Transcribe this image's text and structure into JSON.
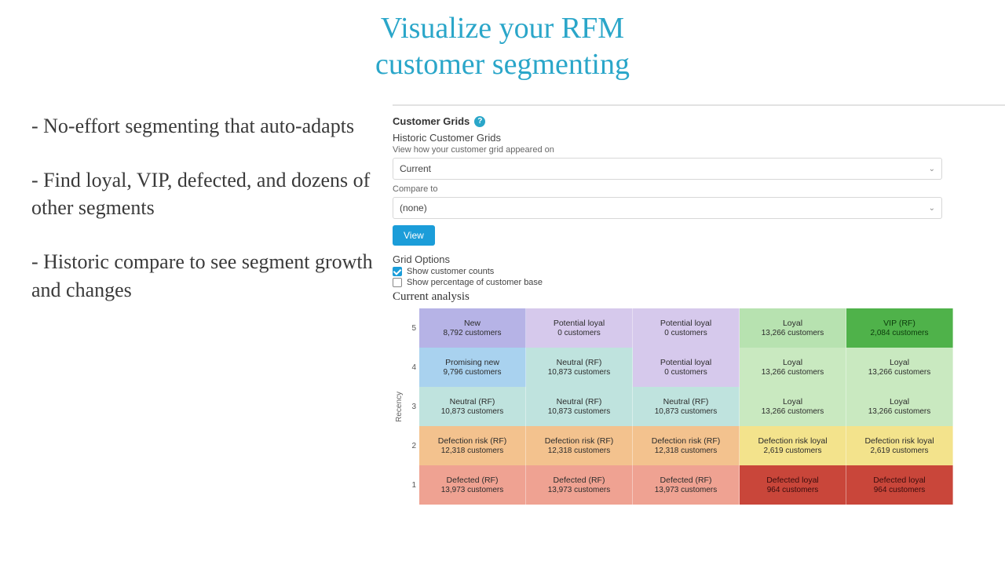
{
  "headline_line1": "Visualize your RFM",
  "headline_line2": "customer segmenting",
  "bullets": [
    "- No-effort segmenting that auto-adapts",
    "- Find loyal, VIP, defected, and dozens of other segments",
    "- Historic compare to see segment growth and changes"
  ],
  "panel": {
    "title": "Customer Grids",
    "help_glyph": "?",
    "historic_title": "Historic Customer Grids",
    "historic_hint": "View how your customer grid appeared on",
    "select_current": "Current",
    "compare_label": "Compare to",
    "select_compare": "(none)",
    "view_label": "View",
    "grid_options_title": "Grid Options",
    "opt_counts": "Show customer counts",
    "opt_percent": "Show percentage of customer base",
    "analysis_title": "Current analysis",
    "y_axis_label": "Recency",
    "y_ticks": [
      "5",
      "4",
      "3",
      "2",
      "1"
    ]
  },
  "grid": {
    "rows": 5,
    "cols": 5,
    "cell_font_size": 10,
    "cells": [
      [
        {
          "seg": "New",
          "count": "8,792 customers",
          "bg": "#b6b3e6"
        },
        {
          "seg": "Potential loyal",
          "count": "0 customers",
          "bg": "#d6c9ec"
        },
        {
          "seg": "Potential loyal",
          "count": "0 customers",
          "bg": "#d6c9ec"
        },
        {
          "seg": "Loyal",
          "count": "13,266 customers",
          "bg": "#b7e2b0"
        },
        {
          "seg": "VIP (RF)",
          "count": "2,084 customers",
          "bg": "#4fb24a",
          "text": "#0c3b0c"
        }
      ],
      [
        {
          "seg": "Promising new",
          "count": "9,796 customers",
          "bg": "#a9d2ef"
        },
        {
          "seg": "Neutral (RF)",
          "count": "10,873 customers",
          "bg": "#bfe3de"
        },
        {
          "seg": "Potential loyal",
          "count": "0 customers",
          "bg": "#d6c9ec"
        },
        {
          "seg": "Loyal",
          "count": "13,266 customers",
          "bg": "#c9e9c0"
        },
        {
          "seg": "Loyal",
          "count": "13,266 customers",
          "bg": "#c9e9c0"
        }
      ],
      [
        {
          "seg": "Neutral (RF)",
          "count": "10,873 customers",
          "bg": "#bfe3de"
        },
        {
          "seg": "Neutral (RF)",
          "count": "10,873 customers",
          "bg": "#bfe3de"
        },
        {
          "seg": "Neutral (RF)",
          "count": "10,873 customers",
          "bg": "#bfe3de"
        },
        {
          "seg": "Loyal",
          "count": "13,266 customers",
          "bg": "#c9e9c0"
        },
        {
          "seg": "Loyal",
          "count": "13,266 customers",
          "bg": "#c9e9c0"
        }
      ],
      [
        {
          "seg": "Defection risk (RF)",
          "count": "12,318 customers",
          "bg": "#f3c28e"
        },
        {
          "seg": "Defection risk (RF)",
          "count": "12,318 customers",
          "bg": "#f3c28e"
        },
        {
          "seg": "Defection risk (RF)",
          "count": "12,318 customers",
          "bg": "#f3c28e"
        },
        {
          "seg": "Defection risk loyal",
          "count": "2,619 customers",
          "bg": "#f3e38c"
        },
        {
          "seg": "Defection risk loyal",
          "count": "2,619 customers",
          "bg": "#f3e38c"
        }
      ],
      [
        {
          "seg": "Defected (RF)",
          "count": "13,973 customers",
          "bg": "#efa292"
        },
        {
          "seg": "Defected (RF)",
          "count": "13,973 customers",
          "bg": "#efa292"
        },
        {
          "seg": "Defected (RF)",
          "count": "13,973 customers",
          "bg": "#efa292"
        },
        {
          "seg": "Defected loyal",
          "count": "964 customers",
          "bg": "#c9463a",
          "text": "#3a0d0d"
        },
        {
          "seg": "Defected loyal",
          "count": "964 customers",
          "bg": "#c9463a",
          "text": "#3a0d0d"
        }
      ]
    ]
  },
  "colors": {
    "headline": "#2aa6c9",
    "button_bg": "#1b9dd9",
    "panel_border": "#e2e2e2"
  }
}
